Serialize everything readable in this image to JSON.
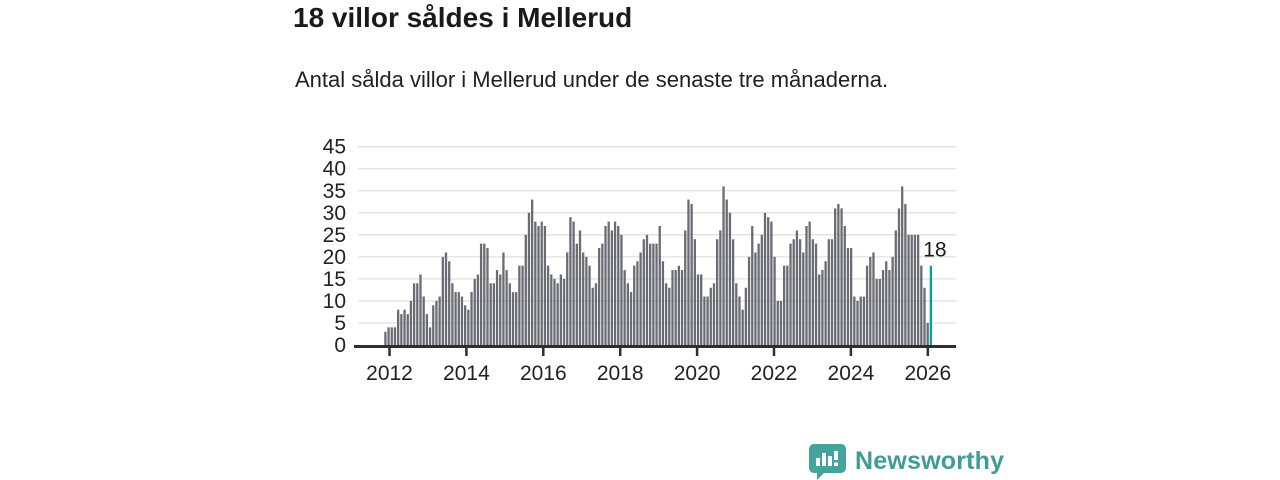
{
  "header": {
    "title": "18 villor såldes i Mellerud",
    "subtitle": "Antal sålda villor i Mellerud under de senaste tre månaderna."
  },
  "chart_data": {
    "type": "bar",
    "title": "18 villor såldes i Mellerud",
    "subtitle": "Antal sålda villor i Mellerud under de senaste tre månaderna.",
    "frequency": "monthly",
    "x_start": "2011-12",
    "x_end": "2026-03",
    "values": [
      3,
      4,
      4,
      4,
      8,
      7,
      8,
      7,
      10,
      14,
      14,
      16,
      11,
      7,
      4,
      9,
      10,
      11,
      20,
      21,
      19,
      14,
      12,
      12,
      11,
      9,
      8,
      12,
      15,
      16,
      23,
      23,
      22,
      14,
      14,
      17,
      16,
      21,
      17,
      14,
      12,
      12,
      18,
      18,
      25,
      30,
      33,
      28,
      27,
      28,
      27,
      18,
      16,
      15,
      14,
      16,
      15,
      21,
      29,
      28,
      23,
      26,
      21,
      20,
      18,
      13,
      14,
      22,
      23,
      27,
      28,
      26,
      28,
      27,
      25,
      17,
      14,
      12,
      18,
      19,
      21,
      24,
      25,
      23,
      23,
      23,
      27,
      19,
      14,
      13,
      17,
      17,
      18,
      17,
      26,
      33,
      32,
      24,
      16,
      16,
      11,
      11,
      13,
      14,
      24,
      26,
      36,
      33,
      30,
      24,
      14,
      11,
      8,
      13,
      20,
      27,
      21,
      23,
      25,
      30,
      29,
      28,
      20,
      10,
      10,
      18,
      18,
      23,
      24,
      26,
      24,
      21,
      27,
      28,
      24,
      23,
      16,
      17,
      19,
      24,
      24,
      31,
      32,
      31,
      27,
      22,
      22,
      11,
      10,
      11,
      11,
      18,
      20,
      21,
      15,
      15,
      17,
      19,
      17,
      20,
      26,
      31,
      36,
      32,
      25,
      25,
      25,
      25,
      18,
      13,
      5,
      18
    ],
    "highlight": {
      "index_from_end": 0,
      "value": 18,
      "label": "18"
    },
    "ylim": [
      0,
      45
    ],
    "yticks": [
      0,
      5,
      10,
      15,
      20,
      25,
      30,
      35,
      40,
      45
    ],
    "xticks": [
      2012,
      2014,
      2016,
      2018,
      2020,
      2022,
      2024,
      2026
    ],
    "grid": true,
    "legend": "none",
    "colors": {
      "bar": "#6b6b73",
      "highlight": "#00a49c",
      "grid": "#e0e0e0",
      "axis": "#2e2e2e",
      "text": "#222222"
    }
  },
  "footer": {
    "brand": "Newsworthy",
    "brand_color": "#3f9d96",
    "logo_color": "#45a49d"
  }
}
